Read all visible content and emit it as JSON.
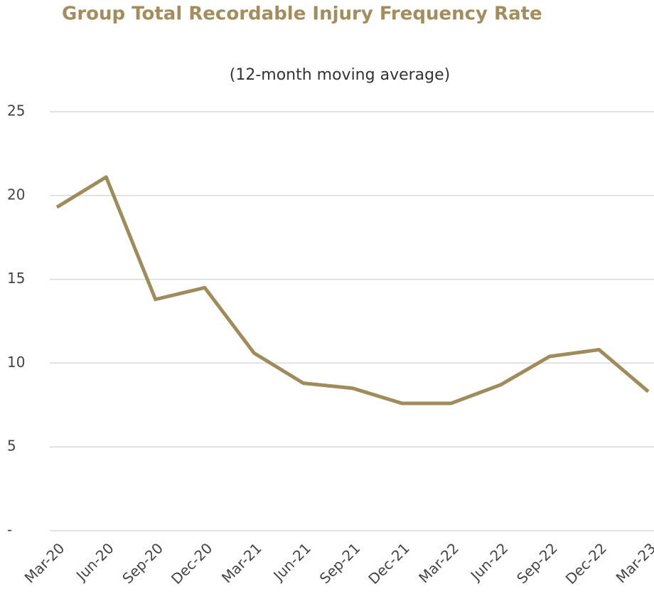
{
  "chart_data": {
    "type": "line",
    "title": "Group Total Recordable Injury Frequency Rate",
    "subtitle": "(12-month moving average)",
    "categories": [
      "Mar-20",
      "Jun-20",
      "Sep-20",
      "Dec-20",
      "Mar-21",
      "Jun-21",
      "Sep-21",
      "Dec-21",
      "Mar-22",
      "Jun-22",
      "Sep-22",
      "Dec-22",
      "Mar-23"
    ],
    "series": [
      {
        "color": "#a08c5b",
        "values": [
          19.3,
          21.1,
          13.8,
          14.5,
          10.6,
          8.8,
          8.5,
          7.6,
          7.6,
          8.7,
          10.4,
          10.8,
          8.3
        ]
      }
    ],
    "ylim": [
      0,
      25
    ],
    "yticks": [
      {
        "value": 0,
        "label": "-"
      },
      5,
      10,
      15,
      20,
      25
    ],
    "grid": true
  }
}
